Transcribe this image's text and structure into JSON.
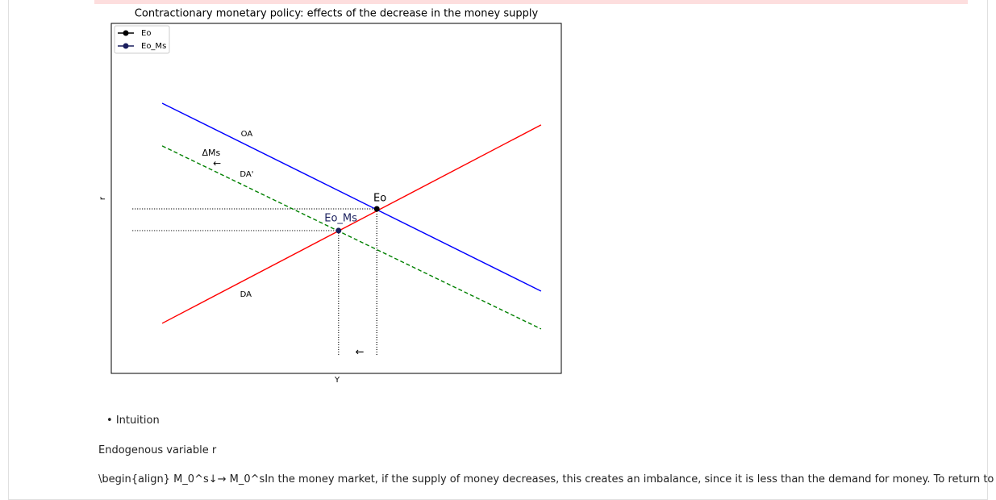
{
  "chart_data": {
    "type": "line",
    "title": "Contractionary monetary policy: effects of the decrease in the money supply",
    "xlabel": "Y",
    "ylabel": "r",
    "xlim": [
      0,
      100
    ],
    "ylim": [
      0,
      100
    ],
    "legend": "upper left",
    "lines": [
      {
        "color": "#0000ff",
        "style": "solid",
        "x": [
          11.3,
          95.5
        ],
        "y": [
          77.2,
          23.5
        ]
      },
      {
        "color": "#ff0000",
        "style": "solid",
        "x": [
          11.3,
          95.5
        ],
        "y": [
          14.3,
          71.0
        ]
      },
      {
        "color": "#008000",
        "style": "dashed",
        "x": [
          11.3,
          95.5
        ],
        "y": [
          65.0,
          12.7
        ]
      }
    ],
    "guides": [
      {
        "x": [
          4.7,
          59.0
        ],
        "y": [
          47.0,
          47.0
        ]
      },
      {
        "x": [
          4.7,
          50.5
        ],
        "y": [
          40.8,
          40.8
        ]
      },
      {
        "x": [
          59.0,
          59.0
        ],
        "y": [
          47.0,
          5.1
        ]
      },
      {
        "x": [
          50.5,
          50.5
        ],
        "y": [
          40.8,
          5.1
        ]
      }
    ],
    "series": [
      {
        "name": "Eo",
        "color": "#000000",
        "x": [
          59.0
        ],
        "y": [
          47.0
        ]
      },
      {
        "name": "Eo_Ms",
        "color": "#1a1f5e",
        "x": [
          50.5
        ],
        "y": [
          40.8
        ]
      }
    ],
    "annotations": [
      {
        "text": "OA",
        "x": 30.1,
        "y": 68.4,
        "color": "#000000",
        "size": 10
      },
      {
        "text": "DA'",
        "x": 30.1,
        "y": 56.9,
        "color": "#000000",
        "size": 10
      },
      {
        "text": "DA",
        "x": 29.9,
        "y": 22.6,
        "color": "#000000",
        "size": 10
      },
      {
        "text": "ΔMs",
        "x": 22.2,
        "y": 62.9,
        "color": "#000000",
        "size": 11
      },
      {
        "text": "←",
        "x": 23.5,
        "y": 59.9,
        "color": "#000000",
        "size": 12
      },
      {
        "text": "←",
        "x": 55.2,
        "y": 6.0,
        "color": "#000000",
        "size": 13
      },
      {
        "text": "Eo",
        "x": 59.7,
        "y": 50.0,
        "color": "#000000",
        "size": 13
      },
      {
        "text": "Eo_Ms",
        "x": 51.0,
        "y": 44.2,
        "color": "#1a1f5e",
        "size": 13
      }
    ]
  },
  "notes": {
    "bullet": "Intuition",
    "paragraph1": "Endogenous variable r",
    "paragraph2": "\\begin{align} M_0^s↓→ M_0^sIn the money market, if the supply of money decreases, this creates an imbalance, since it is less than the demand for money. To return to"
  }
}
